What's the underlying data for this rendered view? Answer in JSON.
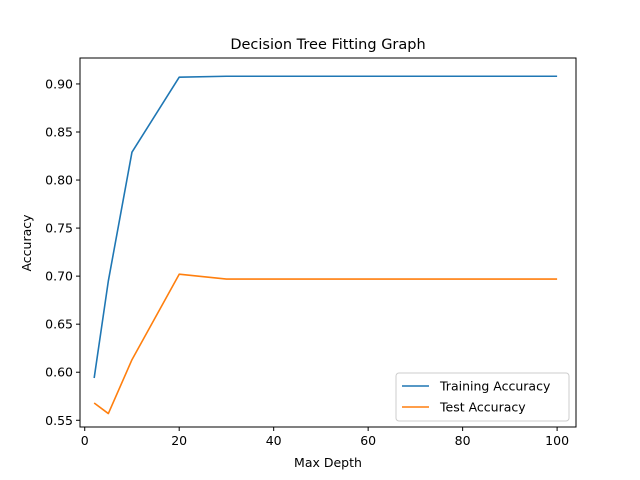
{
  "chart_data": {
    "type": "line",
    "title": "Decision Tree Fitting Graph",
    "xlabel": "Max Depth",
    "ylabel": "Accuracy",
    "xlim": [
      -1,
      104
    ],
    "ylim": [
      0.543,
      0.927
    ],
    "x_ticks": [
      0,
      20,
      40,
      60,
      80,
      100
    ],
    "x_tick_labels": [
      "0",
      "20",
      "40",
      "60",
      "80",
      "100"
    ],
    "y_ticks": [
      0.55,
      0.6,
      0.65,
      0.7,
      0.75,
      0.8,
      0.85,
      0.9
    ],
    "y_tick_labels": [
      "0.55",
      "0.60",
      "0.65",
      "0.70",
      "0.75",
      "0.80",
      "0.85",
      "0.90"
    ],
    "grid": false,
    "legend_position": "bottom-right",
    "series": [
      {
        "name": "Training Accuracy",
        "color": "#1f77b4",
        "x": [
          2,
          5,
          10,
          20,
          30,
          40,
          50,
          60,
          70,
          80,
          90,
          100
        ],
        "y": [
          0.594,
          0.695,
          0.829,
          0.907,
          0.908,
          0.908,
          0.908,
          0.908,
          0.908,
          0.908,
          0.908,
          0.908
        ]
      },
      {
        "name": "Test Accuracy",
        "color": "#ff7f0e",
        "x": [
          2,
          5,
          10,
          20,
          30,
          40,
          50,
          60,
          70,
          80,
          90,
          100
        ],
        "y": [
          0.568,
          0.557,
          0.613,
          0.702,
          0.697,
          0.697,
          0.697,
          0.697,
          0.697,
          0.697,
          0.697,
          0.697
        ]
      }
    ]
  }
}
